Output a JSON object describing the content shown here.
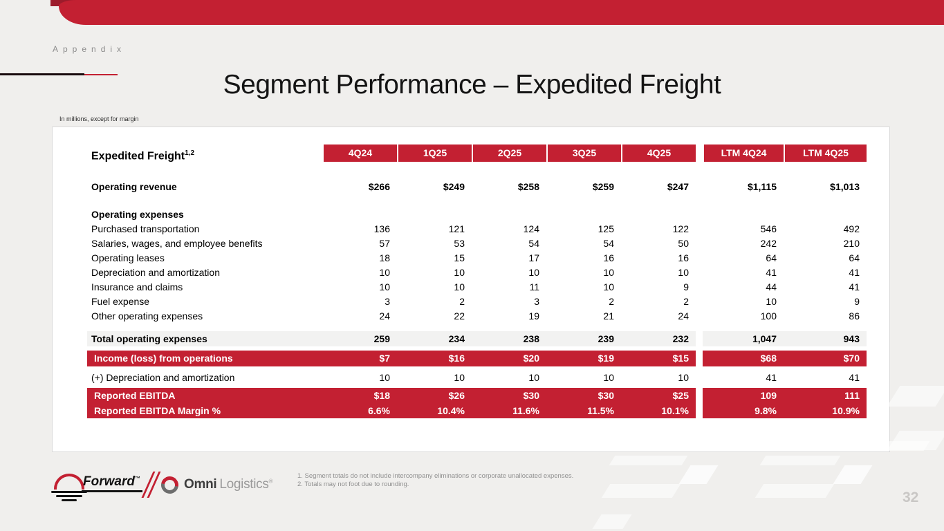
{
  "colors": {
    "accent_red": "#c32032",
    "dark_red": "#9c1b2b",
    "slide_bg": "#f0efed",
    "band_gray": "#f2f2f1"
  },
  "slide": {
    "appendix_label": "Appendix",
    "title": "Segment Performance – Expedited Freight",
    "units_note": "In millions, except for margin",
    "page_number": "32"
  },
  "table": {
    "row_header": "Expedited Freight",
    "row_header_superscript": "1,2",
    "columns": [
      "4Q24",
      "1Q25",
      "2Q25",
      "3Q25",
      "4Q25"
    ],
    "ltm_columns": [
      "LTM 4Q24",
      "LTM 4Q25"
    ],
    "operating_revenue": {
      "label": "Operating revenue",
      "values": [
        "$266",
        "$249",
        "$258",
        "$259",
        "$247",
        "$1,115",
        "$1,013"
      ]
    },
    "expenses_header": "Operating expenses",
    "expense_rows": [
      {
        "label": "Purchased transportation",
        "values": [
          "136",
          "121",
          "124",
          "125",
          "122",
          "546",
          "492"
        ]
      },
      {
        "label": "Salaries, wages, and employee benefits",
        "values": [
          "57",
          "53",
          "54",
          "54",
          "50",
          "242",
          "210"
        ]
      },
      {
        "label": "Operating leases",
        "values": [
          "18",
          "15",
          "17",
          "16",
          "16",
          "64",
          "64"
        ]
      },
      {
        "label": "Depreciation and amortization",
        "values": [
          "10",
          "10",
          "10",
          "10",
          "10",
          "41",
          "41"
        ]
      },
      {
        "label": "Insurance and claims",
        "values": [
          "10",
          "10",
          "11",
          "10",
          "9",
          "44",
          "41"
        ]
      },
      {
        "label": "Fuel expense",
        "values": [
          "3",
          "2",
          "3",
          "2",
          "2",
          "10",
          "9"
        ]
      },
      {
        "label": "Other operating expenses",
        "values": [
          "24",
          "22",
          "19",
          "21",
          "24",
          "100",
          "86"
        ]
      }
    ],
    "total_row": {
      "label": "Total operating expenses",
      "values": [
        "259",
        "234",
        "238",
        "239",
        "232",
        "1,047",
        "943"
      ]
    },
    "income_row": {
      "label": "Income (loss) from operations",
      "values": [
        "$7",
        "$16",
        "$20",
        "$19",
        "$15",
        "$68",
        "$70"
      ]
    },
    "plus_da_row": {
      "label": "(+) Depreciation and amortization",
      "values": [
        "10",
        "10",
        "10",
        "10",
        "10",
        "41",
        "41"
      ]
    },
    "ebitda_row": {
      "label": "Reported EBITDA",
      "values": [
        "$18",
        "$26",
        "$30",
        "$30",
        "$25",
        "109",
        "111"
      ]
    },
    "margin_row": {
      "label": "Reported EBITDA Margin %",
      "values": [
        "6.6%",
        "10.4%",
        "11.6%",
        "11.5%",
        "10.1%",
        "9.8%",
        "10.9%"
      ]
    }
  },
  "footnotes": [
    "1.  Segment totals do not include intercompany eliminations or corporate unallocated expenses.",
    "2.  Totals may not foot due to rounding."
  ],
  "logos": {
    "forward_text": "Forward",
    "forward_tm": "™",
    "omni_bold": "Omni",
    "omni_light": "Logistics",
    "omni_reg": "®"
  }
}
